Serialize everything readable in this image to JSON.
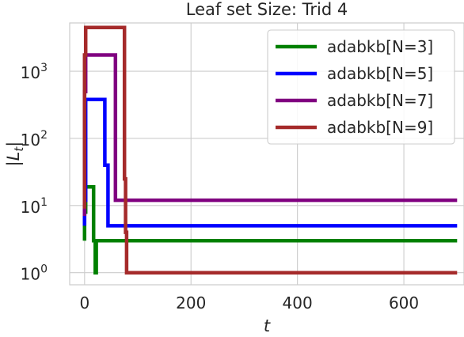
{
  "chart_data": {
    "type": "line",
    "title": "Leaf set Size: Trid 4",
    "xlabel": "t",
    "ylabel": "|L_t|",
    "ylabel_main": "|L",
    "ylabel_sub": "t",
    "ylabel_end": "|",
    "xlim": [
      -28,
      713
    ],
    "ylim_log10": [
      -0.18,
      3.72
    ],
    "yscale": "log",
    "grid": true,
    "legend_position": "top-right",
    "x_ticks": [
      0,
      200,
      400,
      600
    ],
    "x_tick_labels": [
      "0",
      "200",
      "400",
      "600"
    ],
    "y_ticks_log10": [
      0,
      1,
      2,
      3
    ],
    "y_tick_base": "10",
    "y_tick_exponents": [
      "0",
      "1",
      "2",
      "3"
    ],
    "series": [
      {
        "name": "adabkb[N=3]",
        "color": "#008000",
        "x": [
          0,
          0,
          2,
          2,
          17,
          17,
          20,
          20,
          22,
          22,
          700
        ],
        "y": [
          3,
          8,
          8,
          19,
          19,
          3,
          3,
          1,
          1,
          3,
          3
        ]
      },
      {
        "name": "adabkb[N=5]",
        "color": "#0000ff",
        "x": [
          0,
          0,
          2,
          2,
          38,
          38,
          44,
          44,
          700
        ],
        "y": [
          5,
          12,
          12,
          380,
          380,
          40,
          40,
          5,
          5
        ]
      },
      {
        "name": "adabkb[N=7]",
        "color": "#800080",
        "x": [
          0,
          0,
          2,
          2,
          58,
          58,
          61,
          61,
          700
        ],
        "y": [
          7,
          500,
          500,
          1750,
          1750,
          12,
          12,
          12,
          12
        ]
      },
      {
        "name": "adabkb[N=9]",
        "color": "#a52a2a",
        "x": [
          0,
          0,
          2,
          2,
          75,
          75,
          77,
          77,
          79,
          79,
          82,
          82,
          700
        ],
        "y": [
          9,
          1750,
          1750,
          4500,
          4500,
          25,
          25,
          4,
          4,
          1,
          1,
          1,
          1
        ]
      }
    ]
  }
}
